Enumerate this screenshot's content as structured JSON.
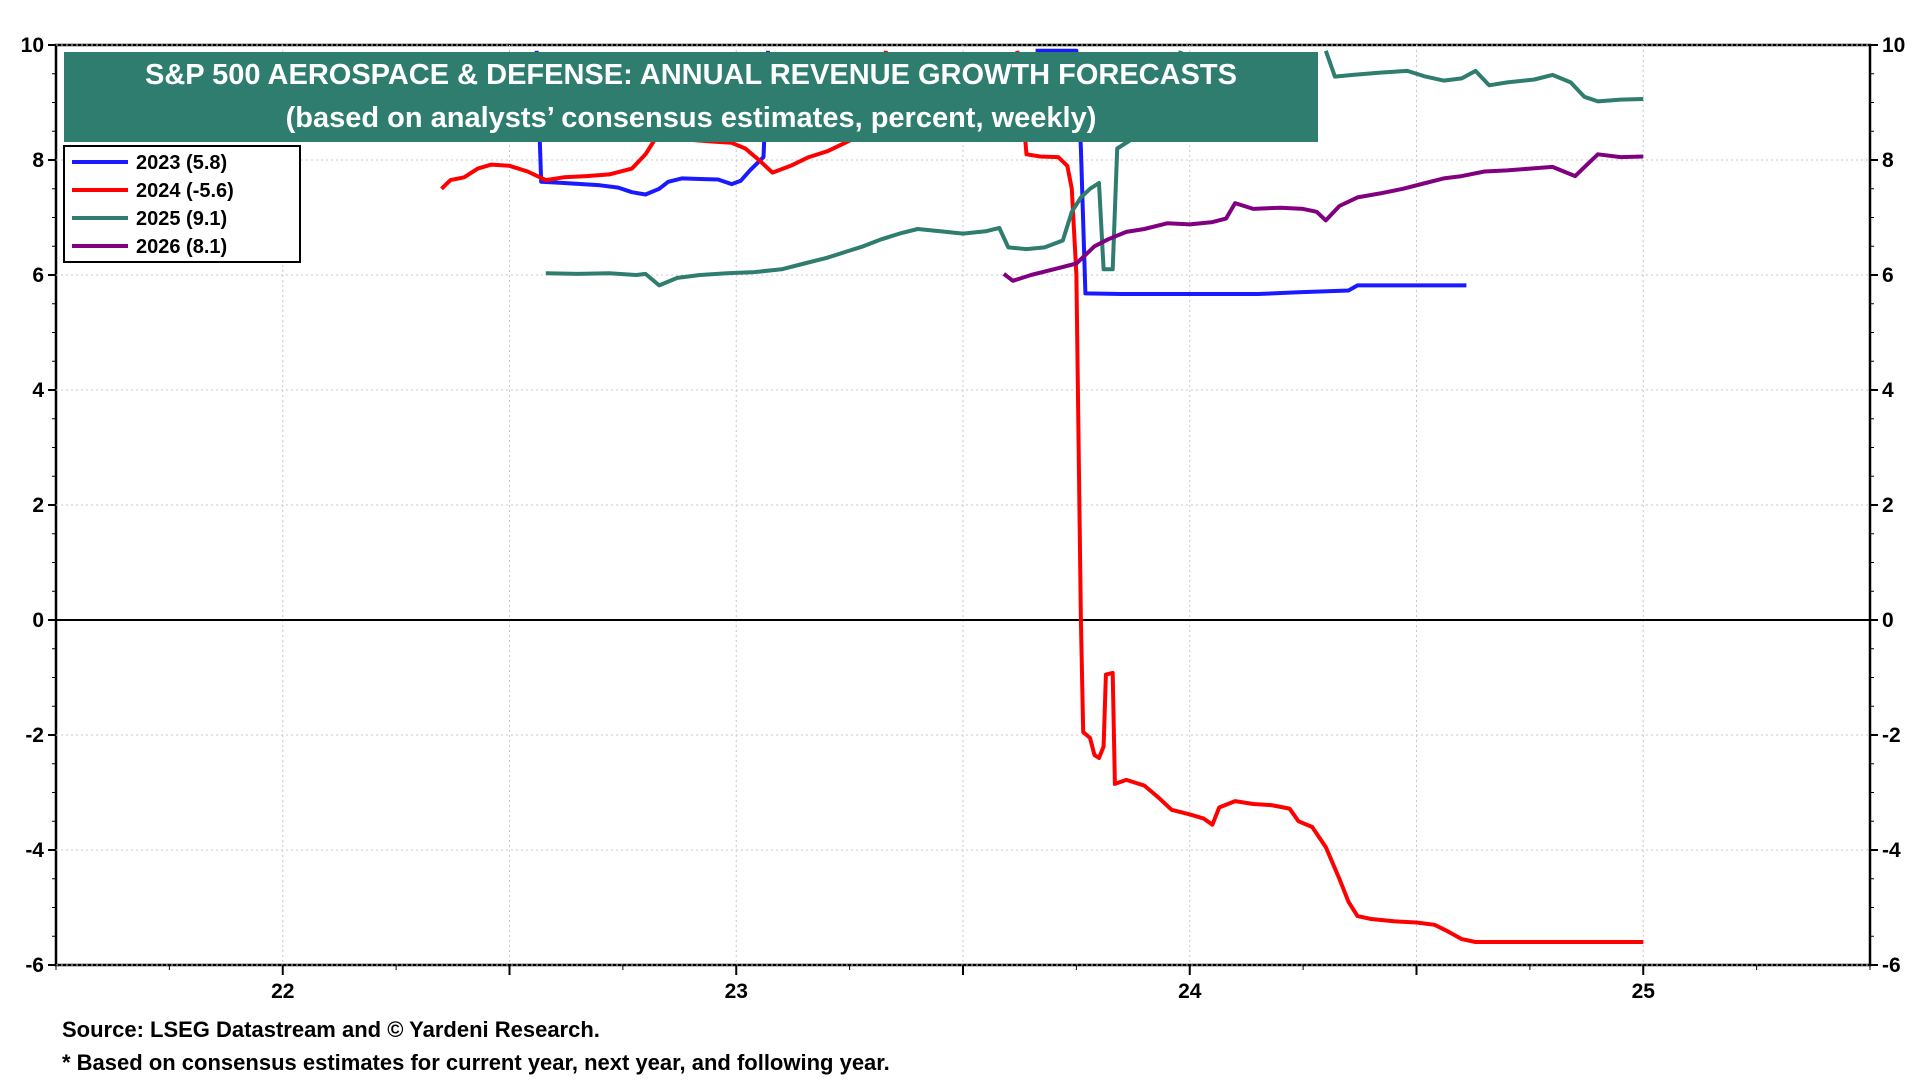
{
  "chart_data": {
    "type": "line",
    "title": "S&P 500 AEROSPACE & DEFENSE: ANNUAL REVENUE GROWTH FORECASTS",
    "subtitle": "(based on analysts’ consensus estimates, percent, weekly)",
    "xlabel": "",
    "ylabel": "",
    "x_unit": "year",
    "xlim": [
      2021.5,
      2025.5
    ],
    "ylim": [
      -6,
      10
    ],
    "y_ticks": [
      "10",
      "8",
      "6",
      "4",
      "2",
      "0",
      "-2",
      "-4",
      "-6"
    ],
    "x_ticks": [
      "22",
      "23",
      "24",
      "25"
    ],
    "grid": true,
    "legend_position": "top-left",
    "colors": {
      "title_bg": "#2e7d6e",
      "axis": "#000000",
      "grid": "#c8c8c8"
    },
    "series": [
      {
        "name": "2023 (5.8)",
        "color": "#1a1aff",
        "points": [
          [
            2022.56,
            9.9
          ],
          [
            2022.57,
            7.62
          ],
          [
            2022.62,
            7.6
          ],
          [
            2022.66,
            7.58
          ],
          [
            2022.7,
            7.56
          ],
          [
            2022.74,
            7.52
          ],
          [
            2022.77,
            7.44
          ],
          [
            2022.8,
            7.4
          ],
          [
            2022.83,
            7.5
          ],
          [
            2022.85,
            7.62
          ],
          [
            2022.88,
            7.68
          ],
          [
            2022.92,
            7.67
          ],
          [
            2022.96,
            7.66
          ],
          [
            2022.99,
            7.58
          ],
          [
            2023.01,
            7.64
          ],
          [
            2023.03,
            7.82
          ],
          [
            2023.06,
            8.05
          ],
          [
            2023.07,
            9.9
          ]
        ],
        "points_b": [
          [
            2023.66,
            9.9
          ],
          [
            2023.75,
            9.9
          ],
          [
            2023.76,
            8.2
          ],
          [
            2023.77,
            5.68
          ],
          [
            2023.85,
            5.67
          ],
          [
            2024.0,
            5.67
          ],
          [
            2024.15,
            5.67
          ],
          [
            2024.24,
            5.7
          ],
          [
            2024.35,
            5.73
          ],
          [
            2024.37,
            5.82
          ],
          [
            2024.5,
            5.82
          ],
          [
            2024.61,
            5.82
          ]
        ]
      },
      {
        "name": "2024 (-5.6)",
        "color": "#ff0000",
        "points": [
          [
            2022.35,
            7.5
          ],
          [
            2022.37,
            7.65
          ],
          [
            2022.4,
            7.7
          ],
          [
            2022.43,
            7.85
          ],
          [
            2022.46,
            7.92
          ],
          [
            2022.5,
            7.9
          ],
          [
            2022.54,
            7.8
          ],
          [
            2022.58,
            7.65
          ],
          [
            2022.62,
            7.7
          ],
          [
            2022.67,
            7.72
          ],
          [
            2022.72,
            7.75
          ],
          [
            2022.77,
            7.85
          ],
          [
            2022.8,
            8.1
          ],
          [
            2022.82,
            8.35
          ],
          [
            2022.86,
            8.38
          ],
          [
            2022.9,
            8.35
          ],
          [
            2022.95,
            8.32
          ],
          [
            2022.99,
            8.3
          ],
          [
            2023.02,
            8.2
          ],
          [
            2023.05,
            8.0
          ],
          [
            2023.08,
            7.78
          ],
          [
            2023.12,
            7.9
          ],
          [
            2023.16,
            8.05
          ],
          [
            2023.2,
            8.15
          ],
          [
            2023.24,
            8.3
          ],
          [
            2023.28,
            8.45
          ],
          [
            2023.31,
            8.6
          ],
          [
            2023.33,
            9.9
          ]
        ],
        "points_b": [
          [
            2023.62,
            9.9
          ],
          [
            2023.64,
            8.1
          ],
          [
            2023.67,
            8.06
          ],
          [
            2023.71,
            8.05
          ],
          [
            2023.73,
            7.9
          ],
          [
            2023.74,
            7.5
          ],
          [
            2023.75,
            6.0
          ],
          [
            2023.76,
            0.0
          ],
          [
            2023.765,
            -1.95
          ],
          [
            2023.78,
            -2.05
          ],
          [
            2023.79,
            -2.35
          ],
          [
            2023.8,
            -2.4
          ],
          [
            2023.81,
            -2.2
          ],
          [
            2023.815,
            -0.95
          ],
          [
            2023.83,
            -0.92
          ],
          [
            2023.835,
            -2.85
          ],
          [
            2023.86,
            -2.78
          ],
          [
            2023.9,
            -2.88
          ],
          [
            2023.93,
            -3.08
          ],
          [
            2023.96,
            -3.3
          ],
          [
            2024.0,
            -3.38
          ],
          [
            2024.03,
            -3.45
          ],
          [
            2024.05,
            -3.56
          ],
          [
            2024.065,
            -3.26
          ],
          [
            2024.1,
            -3.15
          ],
          [
            2024.14,
            -3.2
          ],
          [
            2024.18,
            -3.22
          ],
          [
            2024.22,
            -3.28
          ],
          [
            2024.24,
            -3.5
          ],
          [
            2024.27,
            -3.6
          ],
          [
            2024.3,
            -3.95
          ],
          [
            2024.33,
            -4.5
          ],
          [
            2024.35,
            -4.9
          ],
          [
            2024.37,
            -5.15
          ],
          [
            2024.4,
            -5.2
          ],
          [
            2024.45,
            -5.24
          ],
          [
            2024.5,
            -5.26
          ],
          [
            2024.54,
            -5.3
          ],
          [
            2024.57,
            -5.42
          ],
          [
            2024.6,
            -5.55
          ],
          [
            2024.63,
            -5.6
          ],
          [
            2024.75,
            -5.6
          ],
          [
            2024.9,
            -5.6
          ],
          [
            2025.0,
            -5.6
          ]
        ]
      },
      {
        "name": "2025 (9.1)",
        "color": "#2e7d6e",
        "points": [
          [
            2022.58,
            6.03
          ],
          [
            2022.65,
            6.02
          ],
          [
            2022.72,
            6.03
          ],
          [
            2022.78,
            6.0
          ],
          [
            2022.8,
            6.02
          ],
          [
            2022.83,
            5.82
          ],
          [
            2022.87,
            5.95
          ],
          [
            2022.92,
            6.0
          ],
          [
            2022.98,
            6.03
          ],
          [
            2023.04,
            6.05
          ],
          [
            2023.1,
            6.1
          ],
          [
            2023.15,
            6.2
          ],
          [
            2023.2,
            6.3
          ],
          [
            2023.24,
            6.4
          ],
          [
            2023.28,
            6.5
          ],
          [
            2023.32,
            6.62
          ],
          [
            2023.36,
            6.72
          ],
          [
            2023.4,
            6.8
          ],
          [
            2023.45,
            6.76
          ],
          [
            2023.5,
            6.72
          ],
          [
            2023.55,
            6.76
          ],
          [
            2023.58,
            6.82
          ],
          [
            2023.6,
            6.48
          ],
          [
            2023.64,
            6.45
          ],
          [
            2023.68,
            6.48
          ],
          [
            2023.72,
            6.6
          ],
          [
            2023.74,
            7.1
          ],
          [
            2023.76,
            7.35
          ],
          [
            2023.78,
            7.5
          ],
          [
            2023.8,
            7.6
          ],
          [
            2023.81,
            6.1
          ],
          [
            2023.83,
            6.1
          ],
          [
            2023.84,
            8.2
          ],
          [
            2023.88,
            8.4
          ],
          [
            2023.92,
            8.6
          ],
          [
            2023.95,
            8.85
          ],
          [
            2023.98,
            9.9
          ]
        ],
        "points_b": [
          [
            2024.3,
            9.9
          ],
          [
            2024.32,
            9.45
          ],
          [
            2024.36,
            9.48
          ],
          [
            2024.42,
            9.52
          ],
          [
            2024.48,
            9.55
          ],
          [
            2024.52,
            9.45
          ],
          [
            2024.56,
            9.38
          ],
          [
            2024.6,
            9.42
          ],
          [
            2024.63,
            9.55
          ],
          [
            2024.66,
            9.3
          ],
          [
            2024.7,
            9.35
          ],
          [
            2024.76,
            9.4
          ],
          [
            2024.8,
            9.48
          ],
          [
            2024.84,
            9.35
          ],
          [
            2024.87,
            9.1
          ],
          [
            2024.9,
            9.02
          ],
          [
            2024.95,
            9.05
          ],
          [
            2025.0,
            9.06
          ]
        ]
      },
      {
        "name": "2026 (8.1)",
        "color": "#800080",
        "points": [
          [
            2023.59,
            6.02
          ],
          [
            2023.61,
            5.9
          ],
          [
            2023.65,
            6.0
          ],
          [
            2023.7,
            6.1
          ],
          [
            2023.75,
            6.2
          ],
          [
            2023.79,
            6.5
          ],
          [
            2023.82,
            6.62
          ],
          [
            2023.86,
            6.75
          ],
          [
            2023.9,
            6.8
          ],
          [
            2023.95,
            6.9
          ],
          [
            2024.0,
            6.88
          ],
          [
            2024.05,
            6.92
          ],
          [
            2024.08,
            6.98
          ],
          [
            2024.1,
            7.25
          ],
          [
            2024.14,
            7.15
          ],
          [
            2024.2,
            7.17
          ],
          [
            2024.25,
            7.15
          ],
          [
            2024.28,
            7.1
          ],
          [
            2024.3,
            6.95
          ],
          [
            2024.33,
            7.2
          ],
          [
            2024.37,
            7.35
          ],
          [
            2024.42,
            7.42
          ],
          [
            2024.47,
            7.5
          ],
          [
            2024.52,
            7.6
          ],
          [
            2024.56,
            7.68
          ],
          [
            2024.6,
            7.72
          ],
          [
            2024.65,
            7.8
          ],
          [
            2024.7,
            7.82
          ],
          [
            2024.75,
            7.85
          ],
          [
            2024.8,
            7.88
          ],
          [
            2024.85,
            7.72
          ],
          [
            2024.88,
            7.95
          ],
          [
            2024.9,
            8.1
          ],
          [
            2024.95,
            8.05
          ],
          [
            2025.0,
            8.06
          ]
        ]
      }
    ]
  },
  "footnotes": {
    "source": "Source: LSEG Datastream and © Yardeni Research.",
    "note": "* Based on consensus estimates for current year, next year, and following year."
  }
}
